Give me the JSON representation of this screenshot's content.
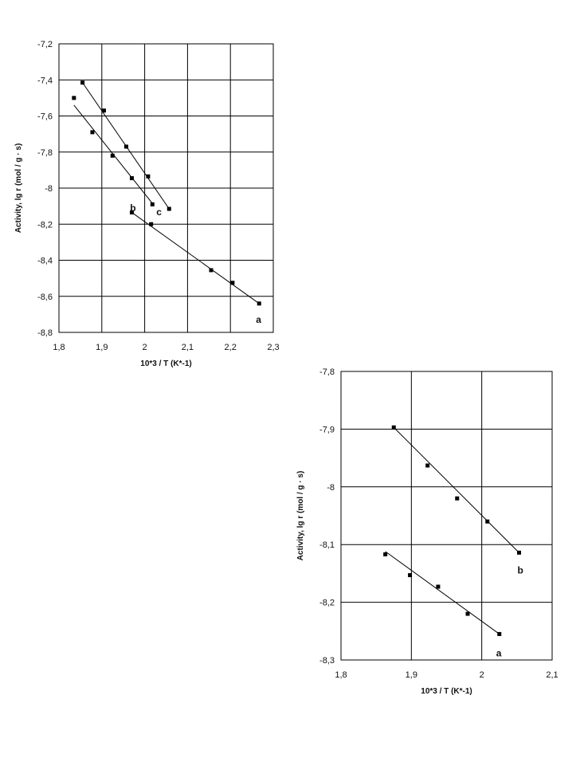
{
  "chart_data": [
    {
      "type": "scatter",
      "title": "",
      "xlabel": "10*3 / T (K*-1)",
      "ylabel": "Activity, lg r (mol / g · s)",
      "xlim": [
        1.8,
        2.3
      ],
      "ylim": [
        -8.8,
        -7.2
      ],
      "grid": true,
      "x_ticks": [
        "1,8",
        "1,9",
        "2",
        "2,1",
        "2,2",
        "2,3"
      ],
      "y_ticks": [
        "-7,2",
        "-7,4",
        "-7,6",
        "-7,8",
        "-8",
        "-8,2",
        "-8,4",
        "-8,6",
        "-8,8"
      ],
      "series": [
        {
          "name": "a",
          "x": [
            1.97,
            2.015,
            2.155,
            2.205,
            2.267
          ],
          "y": [
            -8.135,
            -8.2,
            -8.455,
            -8.525,
            -8.64
          ],
          "fit": {
            "x": [
              1.97,
              2.267
            ],
            "y": [
              -8.135,
              -8.64
            ]
          }
        },
        {
          "name": "b",
          "x": [
            1.835,
            1.878,
            1.925,
            1.97,
            2.018
          ],
          "y": [
            -7.5,
            -7.69,
            -7.82,
            -7.945,
            -8.09
          ],
          "fit": {
            "x": [
              1.835,
              2.018
            ],
            "y": [
              -7.54,
              -8.085
            ]
          }
        },
        {
          "name": "c",
          "x": [
            1.855,
            1.905,
            1.957,
            2.008,
            2.057
          ],
          "y": [
            -7.415,
            -7.57,
            -7.77,
            -7.935,
            -8.115
          ],
          "fit": {
            "x": [
              1.855,
              2.057
            ],
            "y": [
              -7.415,
              -8.115
            ]
          }
        }
      ]
    },
    {
      "type": "scatter",
      "title": "",
      "xlabel": "10*3 / T (K*-1)",
      "ylabel": "Activity, lg r (mol / g · s)",
      "xlim": [
        1.8,
        2.1
      ],
      "ylim": [
        -8.3,
        -7.8
      ],
      "grid": true,
      "x_ticks": [
        "1,8",
        "1,9",
        "2",
        "2,1"
      ],
      "y_ticks": [
        "-7,8",
        "-7,9",
        "-8",
        "-8,1",
        "-8,2",
        "-8,3"
      ],
      "series": [
        {
          "name": "a",
          "x": [
            1.863,
            1.898,
            1.938,
            1.98,
            2.025
          ],
          "y": [
            -8.117,
            -8.153,
            -8.173,
            -8.22,
            -8.255
          ],
          "fit": {
            "x": [
              1.863,
              2.025
            ],
            "y": [
              -8.112,
              -8.255
            ]
          }
        },
        {
          "name": "b",
          "x": [
            1.875,
            1.923,
            1.965,
            2.008,
            2.053
          ],
          "y": [
            -7.897,
            -7.963,
            -8.02,
            -8.06,
            -8.114
          ],
          "fit": {
            "x": [
              1.875,
              2.053
            ],
            "y": [
              -7.897,
              -8.114
            ]
          }
        }
      ]
    }
  ]
}
